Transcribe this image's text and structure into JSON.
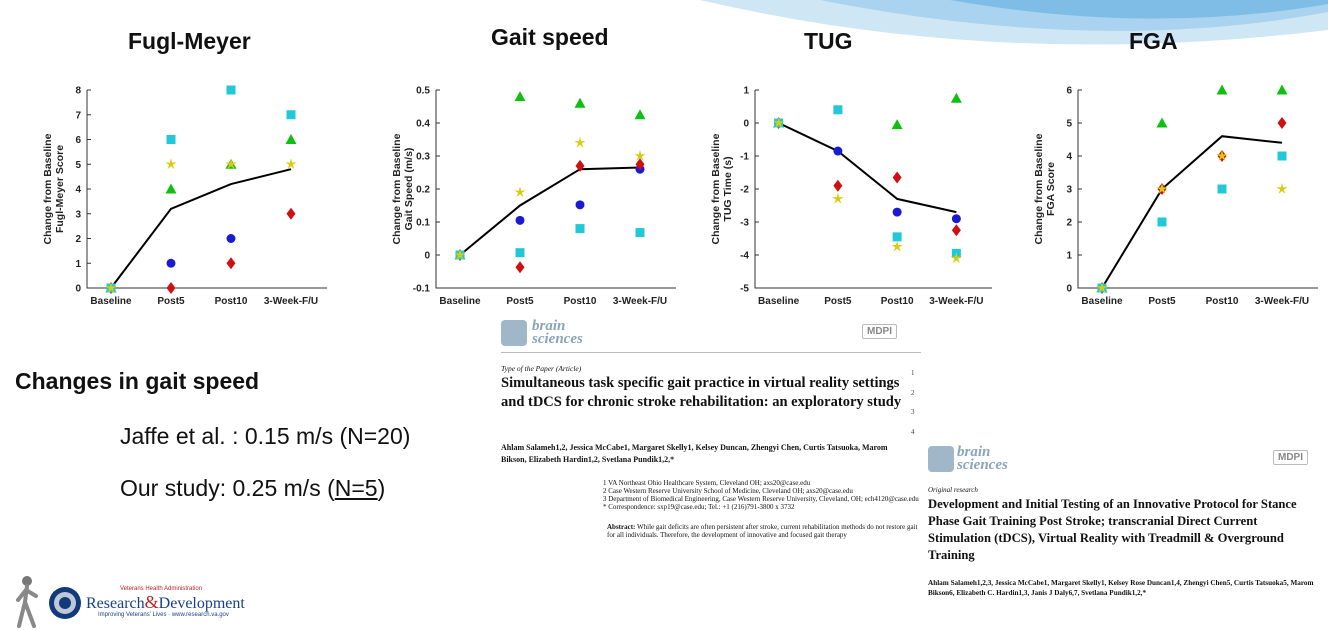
{
  "x_categories": [
    "Baseline",
    "Post5",
    "Post10",
    "3-Week-F/U"
  ],
  "chart_data": [
    {
      "type": "scatter",
      "title": "Fugl-Meyer",
      "ylabel": "Change from Baseline\nFugl-Meyer Score",
      "ylim": [
        0,
        8
      ],
      "yticks": [
        "0",
        "1",
        "2",
        "3",
        "4",
        "5",
        "6",
        "7",
        "8"
      ],
      "mean_line": [
        0,
        3.2,
        4.2,
        4.8
      ],
      "series": [
        {
          "marker": "circle",
          "color": "#1a1ad0",
          "values": [
            0,
            1,
            2,
            null
          ]
        },
        {
          "marker": "diamond",
          "color": "#d01010",
          "values": [
            0,
            0,
            1,
            3
          ]
        },
        {
          "marker": "triangle",
          "color": "#10c010",
          "values": [
            0,
            4,
            5,
            6
          ]
        },
        {
          "marker": "square",
          "color": "#20c8d8",
          "values": [
            0,
            6,
            8,
            7
          ]
        },
        {
          "marker": "star",
          "color": "#d8cc10",
          "values": [
            0,
            5,
            5,
            5
          ]
        }
      ]
    },
    {
      "type": "scatter",
      "title": "Gait speed",
      "ylabel": "Change from Baseline\nGait Speed (m/s)",
      "ylim": [
        -0.1,
        0.5
      ],
      "yticks": [
        "-0.1",
        "0",
        "0.1",
        "0.2",
        "0.3",
        "0.4",
        "0.5"
      ],
      "mean_line": [
        0,
        0.15,
        0.26,
        0.265
      ],
      "series": [
        {
          "marker": "circle",
          "color": "#1a1ad0",
          "values": [
            0,
            0.105,
            0.152,
            0.26
          ]
        },
        {
          "marker": "diamond",
          "color": "#d01010",
          "values": [
            0,
            -0.037,
            0.27,
            0.275
          ]
        },
        {
          "marker": "triangle",
          "color": "#10c010",
          "values": [
            0,
            0.48,
            0.46,
            0.425
          ]
        },
        {
          "marker": "square",
          "color": "#20c8d8",
          "values": [
            0,
            0.007,
            0.08,
            0.068
          ]
        },
        {
          "marker": "star",
          "color": "#d8cc10",
          "values": [
            0,
            0.19,
            0.34,
            0.3
          ]
        }
      ]
    },
    {
      "type": "scatter",
      "title": "TUG",
      "ylabel": "Change from Baseline\nTUG Time (s)",
      "ylim": [
        -5,
        1
      ],
      "yticks": [
        "-5",
        "-4",
        "-3",
        "-2",
        "-1",
        "0",
        "1"
      ],
      "mean_line": [
        0,
        -0.85,
        -2.3,
        -2.7
      ],
      "series": [
        {
          "marker": "circle",
          "color": "#1a1ad0",
          "values": [
            0,
            -0.85,
            -2.7,
            -2.9
          ]
        },
        {
          "marker": "diamond",
          "color": "#d01010",
          "values": [
            0,
            -1.9,
            -1.65,
            -3.25
          ]
        },
        {
          "marker": "triangle",
          "color": "#10c010",
          "values": [
            0,
            null,
            -0.05,
            0.75
          ]
        },
        {
          "marker": "square",
          "color": "#20c8d8",
          "values": [
            0,
            0.4,
            -3.45,
            -3.95
          ]
        },
        {
          "marker": "star",
          "color": "#d8cc10",
          "values": [
            0,
            -2.3,
            -3.75,
            -4.1
          ]
        }
      ]
    },
    {
      "type": "scatter",
      "title": "FGA",
      "ylabel": "Change from Baseline\nFGA Score",
      "ylim": [
        0,
        6
      ],
      "yticks": [
        "0",
        "1",
        "2",
        "3",
        "4",
        "5",
        "6"
      ],
      "mean_line": [
        0,
        3,
        4.6,
        4.4
      ],
      "series": [
        {
          "marker": "circle",
          "color": "#1a1ad0",
          "values": [
            0,
            null,
            null,
            4
          ]
        },
        {
          "marker": "diamond",
          "color": "#d01010",
          "values": [
            0,
            3,
            4,
            5
          ]
        },
        {
          "marker": "triangle",
          "color": "#10c010",
          "values": [
            0,
            5,
            6,
            6
          ]
        },
        {
          "marker": "square",
          "color": "#20c8d8",
          "values": [
            0,
            2,
            3,
            4
          ]
        },
        {
          "marker": "star",
          "color": "#d8cc10",
          "values": [
            0,
            3,
            4,
            3
          ]
        }
      ]
    }
  ],
  "section": {
    "title": "Changes in gait speed",
    "line1": "Jaffe et al. : 0.15 m/s (N=20)",
    "line2_prefix": "Our study: 0.25 m/s (",
    "line2_n": "N=5",
    "line2_suffix": ")"
  },
  "paper1": {
    "journal_line1": "brain",
    "journal_line2": "sciences",
    "publisher": "MDPI",
    "type_line": "Type of the Paper (Article)",
    "title": "Simultaneous task specific gait practice in virtual reality settings and tDCS for chronic stroke rehabilitation: an exploratory study",
    "line_numbers": [
      "1",
      "2",
      "3",
      "4"
    ],
    "authors": "Ahlam Salameh1,2, Jessica McCabe1, Margaret Skelly1, Kelsey Duncan, Zhengyi Chen, Curtis Tatsuoka, Marom Bikson, Elizabeth Hardin1,2, Svetlana Pundik1,2,*",
    "aff1": "1 VA Northeast Ohio Healthcare System, Cleveland OH; axs20@case.edu",
    "aff2": "2 Case Western Reserve University School of Medicine, Cleveland OH; axs20@case.edu",
    "aff3": "3 Department of Biomedical Engineering, Case Western Reserve University, Cleveland, OH; ech4120@case.edu",
    "aff4": "* Correspondence: sxp19@case.edu; Tel.: +1 (216)791-3800 x 3732",
    "abstract_label": "Abstract:",
    "abstract_text": "While gait deficits are often persistent after stroke, current rehabilitation methods do not restore gait for all individuals. Therefore, the development of innovative and focused gait therapy"
  },
  "paper2": {
    "journal_line1": "brain",
    "journal_line2": "sciences",
    "publisher": "MDPI",
    "type_line": "Original research",
    "title": "Development and Initial Testing of an Innovative Protocol for Stance Phase Gait Training Post Stroke; transcranial Direct Current Stimulation (tDCS), Virtual Reality with Treadmill & Overground Training",
    "authors": "Ahlam Salameh1,2,3, Jessica McCabe1, Margaret Skelly1, Kelsey Rose Duncan1,4, Zhengyi Chen5, Curtis Tatsuoka5, Marom Bikson6, Elizabeth C. Hardin1,3, Janis J Daly6,7, Svetlana Pundik1,2,*"
  },
  "logo": {
    "top_line": "Veterans Health Administration",
    "name_left": "Research",
    "name_amp": "&",
    "name_right": "Development",
    "tagline": "Improving Veterans' Lives · www.research.va.gov"
  }
}
